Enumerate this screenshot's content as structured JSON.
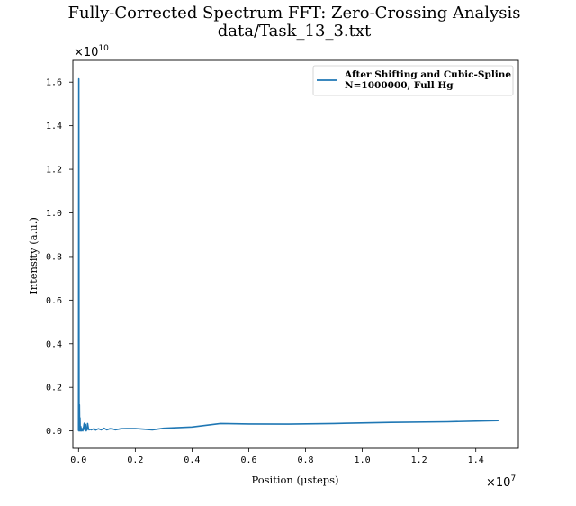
{
  "chart_data": {
    "type": "line",
    "title": "Fully-Corrected Spectrum FFT: Zero-Crossing Analysis",
    "subtitle": "data/Task_13_3.txt",
    "xlabel": "Position (μsteps)",
    "ylabel": "Intensity (a.u.)",
    "x_multiplier": {
      "base": "×10",
      "exp": "7"
    },
    "y_multiplier": {
      "base": "×10",
      "exp": "10"
    },
    "xlim": [
      -0.74,
      1.55
    ],
    "ylim": [
      -0.08,
      1.7
    ],
    "x_ticks": [
      0.0,
      0.2,
      0.4,
      0.6,
      0.8,
      1.0,
      1.2,
      1.4
    ],
    "x_tick_labels": [
      "0.0",
      "0.2",
      "0.4",
      "0.6",
      "0.8",
      "1.0",
      "1.2",
      "1.4"
    ],
    "y_ticks": [
      0.0,
      0.2,
      0.4,
      0.6,
      0.8,
      1.0,
      1.2,
      1.4,
      1.6
    ],
    "y_tick_labels": [
      "0.0",
      "0.2",
      "0.4",
      "0.6",
      "0.8",
      "1.0",
      "1.2",
      "1.4",
      "1.6"
    ],
    "grid": false,
    "legend_position": "top-right",
    "series": [
      {
        "name_lines": [
          "After Shifting and Cubic-Spline",
          "N=1000000, Full Hg"
        ],
        "color": "#1f77b4",
        "x": [
          0.0,
          0.001,
          0.002,
          0.003,
          0.004,
          0.005,
          0.006,
          0.008,
          0.01,
          0.012,
          0.015,
          0.018,
          0.02,
          0.022,
          0.025,
          0.027,
          0.028,
          0.03,
          0.032,
          0.035,
          0.037,
          0.04,
          0.045,
          0.05,
          0.055,
          0.06,
          0.07,
          0.08,
          0.09,
          0.1,
          0.11,
          0.12,
          0.13,
          0.15,
          0.17,
          0.2,
          0.23,
          0.26,
          0.3,
          0.4,
          0.5,
          0.6,
          0.74,
          0.9,
          1.1,
          1.3,
          1.48
        ],
        "y": [
          0.0,
          1.615,
          0.0,
          0.12,
          0.01,
          0.06,
          0.0,
          0.02,
          0.0,
          0.01,
          0.0,
          0.02,
          0.035,
          0.005,
          0.03,
          0.0,
          0.01,
          0.005,
          0.034,
          0.01,
          0.005,
          0.008,
          0.005,
          0.008,
          0.01,
          0.004,
          0.01,
          0.005,
          0.012,
          0.005,
          0.01,
          0.009,
          0.005,
          0.01,
          0.011,
          0.011,
          0.008,
          0.005,
          0.012,
          0.018,
          0.034,
          0.032,
          0.031,
          0.034,
          0.039,
          0.042,
          0.047
        ]
      }
    ]
  }
}
